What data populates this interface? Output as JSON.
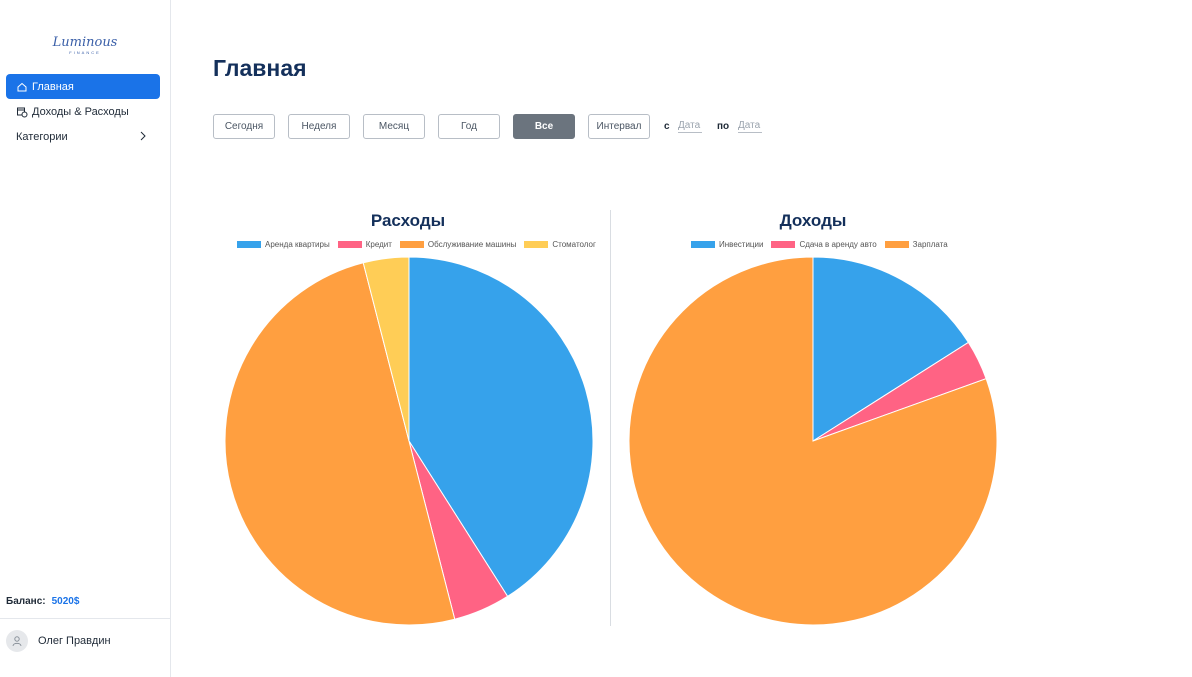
{
  "sidebar": {
    "logo_text": "Luminous",
    "logo_subtext": "FINANCE",
    "nav": [
      {
        "label": "Главная",
        "icon": "home-icon"
      },
      {
        "label": "Доходы & Расходы",
        "icon": "calendar-money-icon"
      },
      {
        "label": "Категории",
        "icon": "chevron-right-icon"
      }
    ],
    "balance_label": "Баланс:",
    "balance_value": "5020$",
    "user_name": "Олег Правдин"
  },
  "main": {
    "title": "Главная",
    "filters": [
      "Сегодня",
      "Неделя",
      "Месяц",
      "Год",
      "Все",
      "Интервал"
    ],
    "selected_filter": "Все",
    "from_label": "с",
    "to_label": "по",
    "date_placeholder": "Дата"
  },
  "colors": {
    "accent": "#1a73e8",
    "blue": "#36a2eb",
    "pink": "#ff6384",
    "orange": "#ff9f40",
    "yellow": "#ffcd56"
  },
  "chart_data": [
    {
      "type": "pie",
      "title": "Расходы",
      "legend": "top",
      "labels": [
        "Аренда квартиры",
        "Кредит",
        "Обслуживание машины",
        "Стоматолог"
      ],
      "values": [
        41,
        5,
        50,
        4
      ],
      "colors": [
        "#36a2eb",
        "#ff6384",
        "#ff9f40",
        "#ffcd56"
      ]
    },
    {
      "type": "pie",
      "title": "Доходы",
      "legend": "top",
      "labels": [
        "Инвестиции",
        "Сдача в аренду авто",
        "Зарплата"
      ],
      "values": [
        16,
        3.5,
        80.5
      ],
      "colors": [
        "#36a2eb",
        "#ff6384",
        "#ff9f40"
      ]
    }
  ]
}
